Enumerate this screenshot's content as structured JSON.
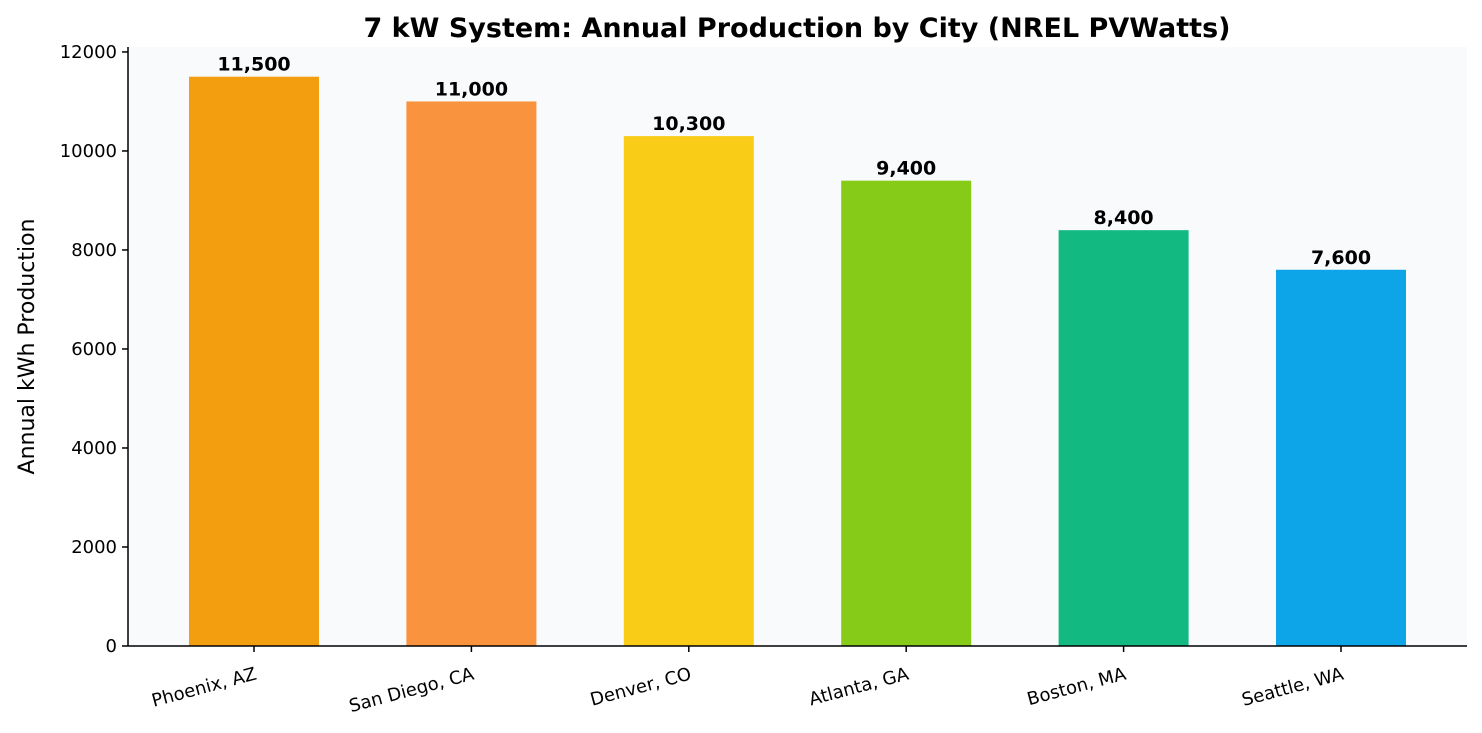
{
  "chart_data": {
    "type": "bar",
    "title": "7 kW System: Annual Production by City (NREL PVWatts)",
    "xlabel": "",
    "ylabel": "Annual kWh Production",
    "ylim": [
      0,
      12100
    ],
    "yticks": [
      0,
      2000,
      4000,
      6000,
      8000,
      10000,
      12000
    ],
    "ytick_labels": [
      "0",
      "2000",
      "4000",
      "6000",
      "8000",
      "10000",
      "12000"
    ],
    "categories": [
      "Phoenix, AZ",
      "San Diego, CA",
      "Denver, CO",
      "Atlanta, GA",
      "Boston, MA",
      "Seattle, WA"
    ],
    "values": [
      11500,
      11000,
      10300,
      9400,
      8400,
      7600
    ],
    "data_labels": [
      "11,500",
      "11,000",
      "10,300",
      "9,400",
      "8,400",
      "7,600"
    ],
    "colors": [
      "#f29e0f",
      "#f9933e",
      "#f8cc17",
      "#86cb17",
      "#12b981",
      "#0ea5e8"
    ],
    "plot_background": "#f8fafc",
    "grid": false,
    "legend": "none"
  }
}
